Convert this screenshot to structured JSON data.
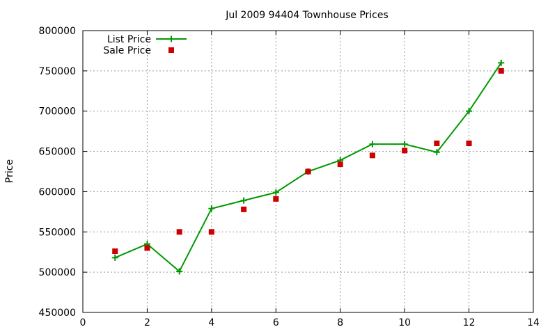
{
  "chart_data": {
    "type": "line",
    "title": "Jul 2009 94404 Townhouse Prices",
    "xlabel": "",
    "ylabel": "Price",
    "xlim": [
      0,
      14
    ],
    "ylim": [
      450000,
      800000
    ],
    "x_ticks": [
      0,
      2,
      4,
      6,
      8,
      10,
      12,
      14
    ],
    "y_ticks": [
      450000,
      500000,
      550000,
      600000,
      650000,
      700000,
      750000,
      800000
    ],
    "x_tick_labels": [
      "0",
      "2",
      "4",
      "6",
      "8",
      "10",
      "12",
      "14"
    ],
    "y_tick_labels": [
      "450000",
      "500000",
      "550000",
      "600000",
      "650000",
      "700000",
      "750000",
      "800000"
    ],
    "grid": true,
    "legend_position": "top-left",
    "series": [
      {
        "name": "List Price",
        "style": "line-with-plus-markers",
        "color": "#009900",
        "x": [
          1,
          2,
          3,
          4,
          5,
          6,
          7,
          8,
          9,
          10,
          11,
          12,
          13
        ],
        "y": [
          518000,
          535000,
          501000,
          579000,
          589000,
          599000,
          625000,
          639000,
          659000,
          659000,
          649000,
          700000,
          760000
        ]
      },
      {
        "name": "Sale Price",
        "style": "square-markers",
        "color": "#cc0000",
        "x": [
          1,
          2,
          3,
          4,
          5,
          6,
          7,
          8,
          9,
          10,
          11,
          12,
          13
        ],
        "y": [
          526000,
          530000,
          550000,
          550000,
          578000,
          591000,
          625000,
          634000,
          645000,
          651000,
          660000,
          660000,
          750000
        ]
      }
    ]
  }
}
